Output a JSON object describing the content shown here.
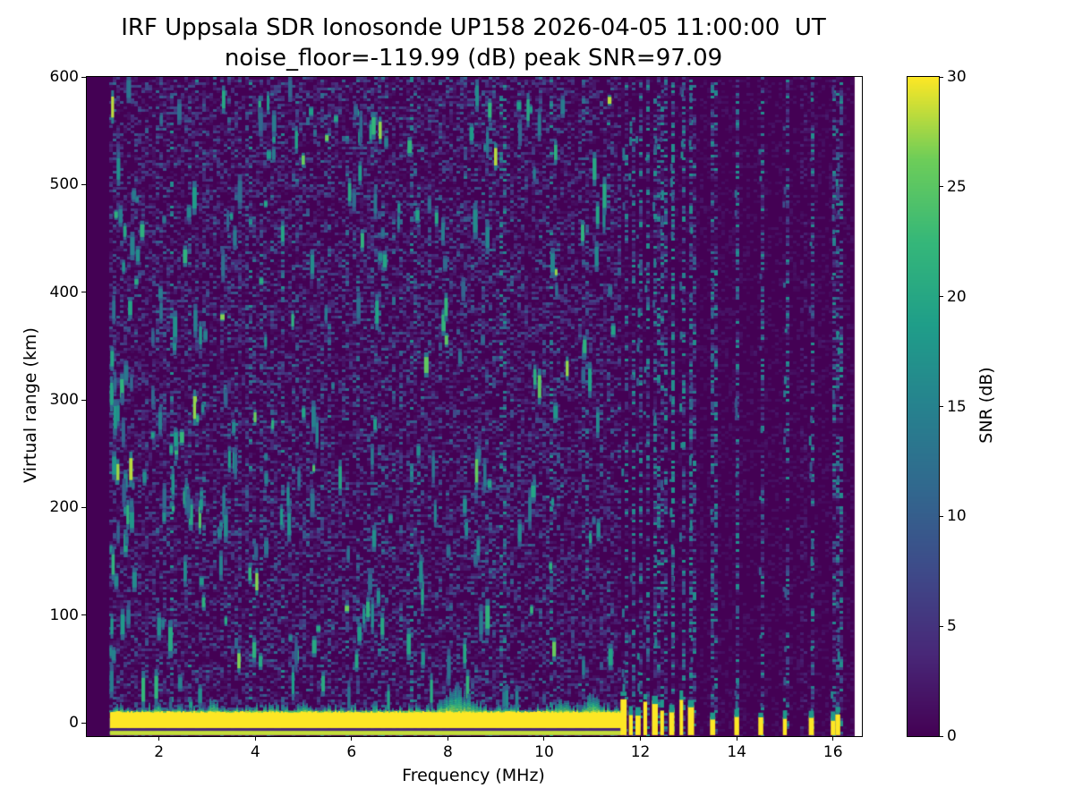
{
  "chart_data": {
    "type": "heatmap",
    "title": "IRF Uppsala SDR Ionosonde UP158 2026-04-05 11:00:00  UT",
    "subtitle": "noise_floor=-119.99 (dB) peak SNR=97.09",
    "station": "IRF Uppsala SDR Ionosonde UP158",
    "timestamp_ut": "2026-04-05 11:00:00",
    "noise_floor_db": -119.99,
    "peak_snr_db": 97.09,
    "xlabel": "Frequency (MHz)",
    "ylabel": "Virtual range (km)",
    "xlim": [
      0.5,
      16.6
    ],
    "ylim": [
      -12.4,
      600
    ],
    "xticks": [
      2,
      4,
      6,
      8,
      10,
      12,
      14,
      16
    ],
    "yticks": [
      0,
      100,
      200,
      300,
      400,
      500,
      600
    ],
    "grid": false,
    "colorbar": {
      "label": "SNR (dB)",
      "min": 0,
      "max": 30,
      "ticks": [
        0,
        5,
        10,
        15,
        20,
        25,
        30
      ],
      "colormap": "viridis",
      "position": "right"
    },
    "data_freq_range_mhz": [
      1.0,
      16.35
    ],
    "background_snr_db": 0,
    "ground_echo_band": {
      "range_km": [
        -11.5,
        11
      ],
      "snr_db": 30,
      "continuous_freq_range_mhz": [
        1.0,
        11.62
      ]
    },
    "discrete_pulse_freqs_mhz": [
      11.65,
      11.8,
      11.95,
      12.1,
      12.3,
      12.45,
      12.65,
      12.85,
      13.05,
      13.5,
      14.0,
      14.5,
      15.0,
      15.55,
      16.0,
      16.1
    ],
    "echo_enhancements": [
      {
        "freq_mhz": 3.1,
        "extra_range_km": 12,
        "width_mhz": 0.08
      },
      {
        "freq_mhz": 5.0,
        "extra_range_km": 7,
        "width_mhz": 0.1
      },
      {
        "freq_mhz": 8.0,
        "extra_range_km": 10,
        "width_mhz": 0.15
      },
      {
        "freq_mhz": 8.3,
        "extra_range_km": 16,
        "width_mhz": 0.25
      },
      {
        "freq_mhz": 10.35,
        "extra_range_km": 10,
        "width_mhz": 0.12
      },
      {
        "freq_mhz": 11.0,
        "extra_range_km": 13,
        "width_mhz": 0.15
      }
    ],
    "scatter_description": "sparse teal/green speckle echoes scattered 0-600 km, densest below 8 MHz; faint vertical interference columns at discrete pulse frequencies above 11.6 MHz"
  }
}
